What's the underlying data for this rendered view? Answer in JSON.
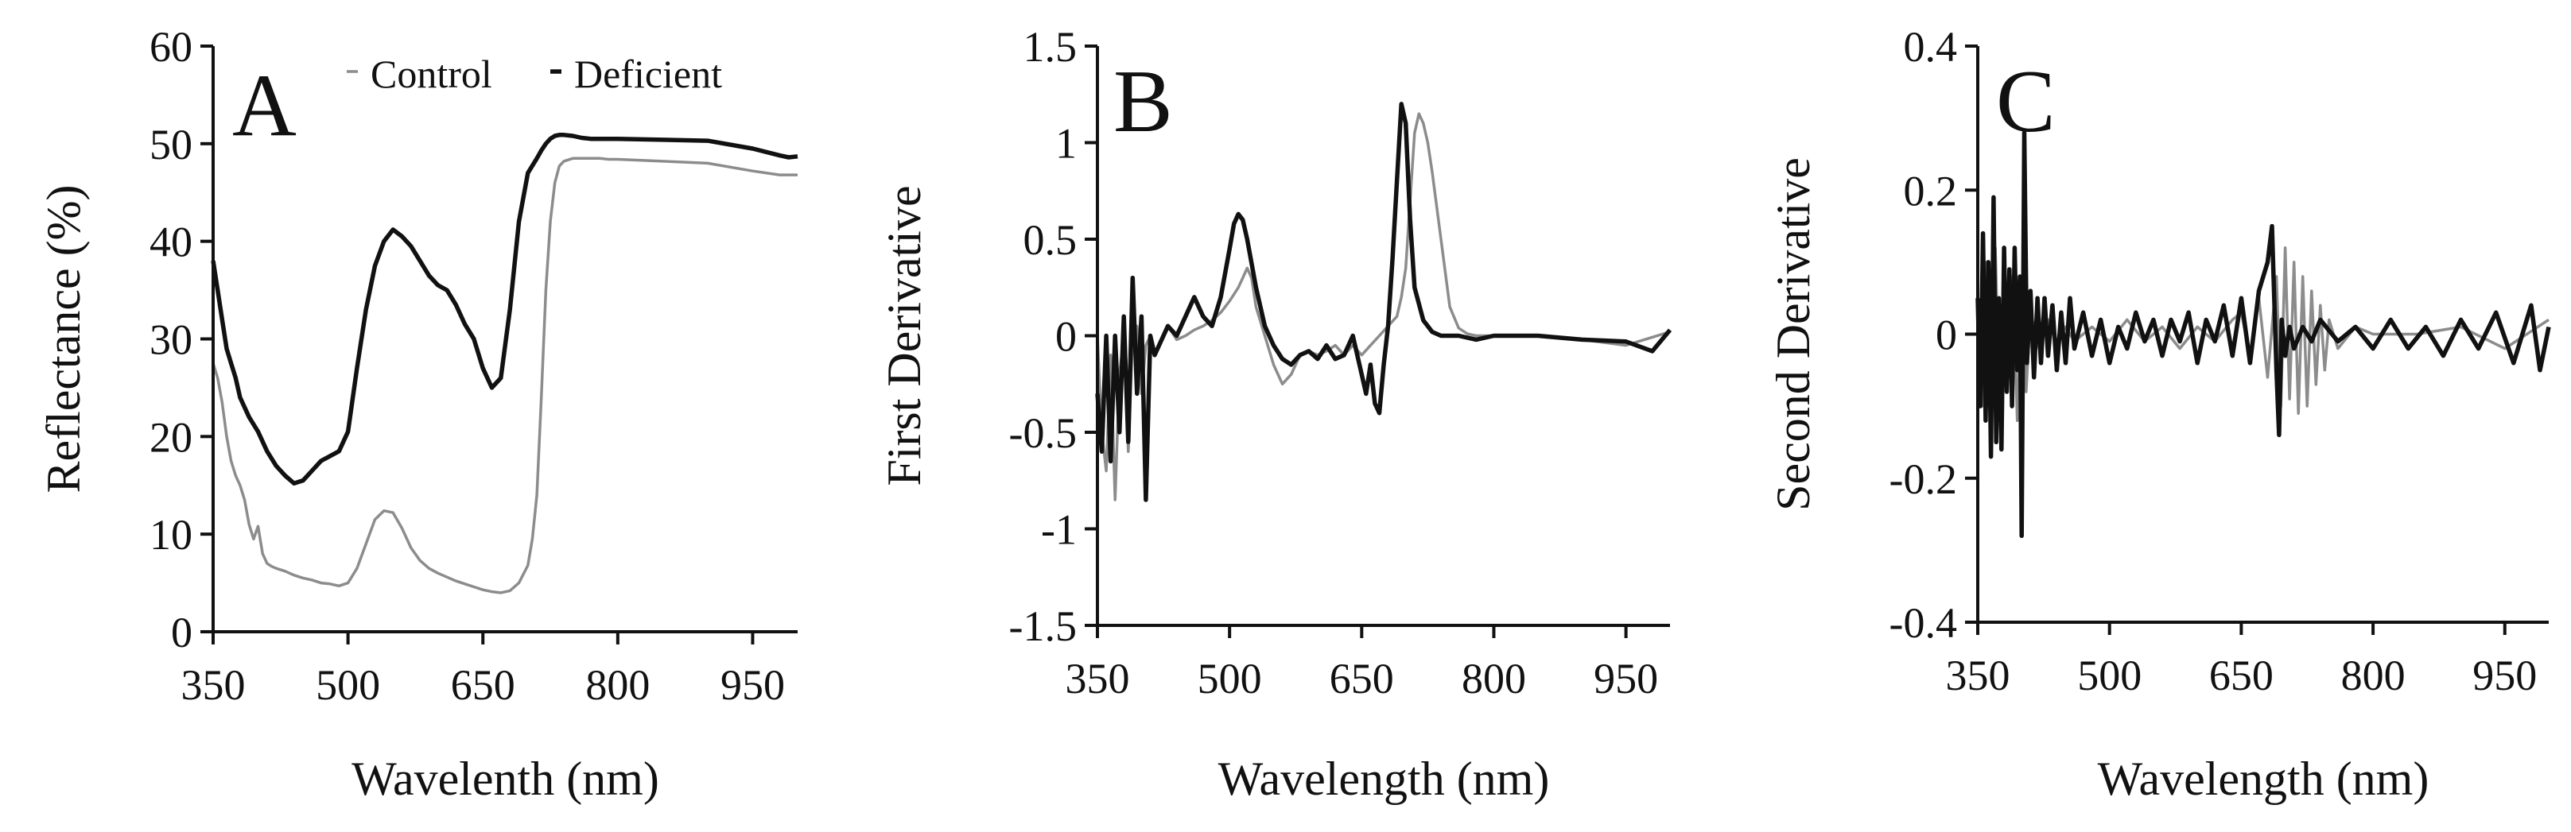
{
  "colors": {
    "control": "#8c8c8c",
    "deficient": "#111111",
    "axis": "#111111"
  },
  "chart_data": [
    {
      "type": "line",
      "panel_letter": "A",
      "title": "",
      "xlabel": "Wavelenth (nm)",
      "ylabel": "Reflectance (%)",
      "xlim": [
        350,
        1000
      ],
      "ylim": [
        0,
        60
      ],
      "xticks": [
        350,
        500,
        650,
        800,
        950
      ],
      "xtick_labels": [
        "350",
        "500",
        "650",
        "800",
        "950"
      ],
      "yticks": [
        0,
        10,
        20,
        30,
        40,
        50,
        60
      ],
      "ytick_labels": [
        "0",
        "10",
        "20",
        "30",
        "40",
        "50",
        "60"
      ],
      "legend": {
        "placement": "top-right",
        "labels": [
          "Control",
          "Deficient"
        ]
      },
      "grid": false,
      "series": [
        {
          "name": "Control",
          "color_key": "control",
          "x": [
            350,
            355,
            360,
            365,
            370,
            375,
            380,
            385,
            390,
            395,
            400,
            405,
            410,
            415,
            420,
            430,
            440,
            450,
            460,
            470,
            480,
            490,
            500,
            510,
            520,
            530,
            540,
            550,
            560,
            570,
            580,
            590,
            600,
            610,
            620,
            630,
            640,
            650,
            660,
            670,
            680,
            690,
            700,
            705,
            710,
            715,
            720,
            725,
            730,
            735,
            740,
            750,
            760,
            770,
            780,
            790,
            800,
            850,
            900,
            950,
            980,
            1000
          ],
          "y": [
            27.5,
            26,
            23.5,
            20,
            17.5,
            16,
            15,
            13.5,
            11,
            9.5,
            10.8,
            8,
            7,
            6.7,
            6.5,
            6.2,
            5.8,
            5.5,
            5.3,
            5,
            4.9,
            4.7,
            5,
            6.5,
            9,
            11.5,
            12.4,
            12.2,
            10.6,
            8.6,
            7.3,
            6.5,
            6,
            5.6,
            5.2,
            4.9,
            4.6,
            4.3,
            4.1,
            4,
            4.2,
            5,
            6.8,
            9.5,
            14,
            24,
            35,
            42,
            46,
            47.7,
            48.2,
            48.5,
            48.5,
            48.5,
            48.5,
            48.4,
            48.4,
            48.2,
            48,
            47.2,
            46.8,
            46.8
          ]
        },
        {
          "name": "Deficient",
          "color_key": "deficient",
          "x": [
            350,
            355,
            360,
            365,
            370,
            375,
            380,
            390,
            400,
            410,
            420,
            430,
            440,
            450,
            460,
            470,
            480,
            490,
            500,
            510,
            520,
            530,
            540,
            550,
            560,
            570,
            580,
            590,
            600,
            610,
            620,
            630,
            640,
            650,
            660,
            670,
            680,
            690,
            700,
            710,
            715,
            720,
            725,
            730,
            735,
            740,
            750,
            760,
            770,
            780,
            790,
            800,
            850,
            900,
            950,
            980,
            990,
            1000
          ],
          "y": [
            38,
            35,
            32,
            29,
            27.5,
            26,
            24,
            22,
            20.5,
            18.5,
            17,
            16,
            15.2,
            15.5,
            16.5,
            17.5,
            18,
            18.5,
            20.5,
            27,
            33,
            37.5,
            40,
            41.2,
            40.5,
            39.5,
            38,
            36.5,
            35.5,
            35,
            33.5,
            31.5,
            30,
            27,
            25,
            26,
            33,
            42,
            47,
            48.5,
            49.3,
            50,
            50.5,
            50.8,
            50.9,
            50.9,
            50.8,
            50.6,
            50.5,
            50.5,
            50.5,
            50.5,
            50.4,
            50.3,
            49.5,
            48.8,
            48.6,
            48.7
          ]
        }
      ]
    },
    {
      "type": "line",
      "panel_letter": "B",
      "title": "",
      "xlabel": "Wavelength (nm)",
      "ylabel": "First Derivative",
      "xlim": [
        350,
        1000
      ],
      "ylim": [
        -1.5,
        1.5
      ],
      "xticks": [
        350,
        500,
        650,
        800,
        950
      ],
      "xtick_labels": [
        "350",
        "500",
        "650",
        "800",
        "950"
      ],
      "yticks": [
        -1.5,
        -1,
        -0.5,
        0,
        0.5,
        1,
        1.5
      ],
      "ytick_labels": [
        "-1.5",
        "-1",
        "-0.5",
        "0",
        "0.5",
        "1",
        "1.5"
      ],
      "grid": false,
      "series": [
        {
          "name": "Control",
          "color_key": "control",
          "x": [
            350,
            355,
            360,
            365,
            370,
            375,
            380,
            385,
            390,
            395,
            400,
            405,
            410,
            415,
            420,
            430,
            440,
            450,
            460,
            470,
            480,
            490,
            500,
            510,
            515,
            520,
            525,
            530,
            540,
            550,
            560,
            570,
            580,
            590,
            600,
            610,
            620,
            630,
            640,
            650,
            660,
            670,
            680,
            690,
            695,
            700,
            705,
            710,
            715,
            720,
            725,
            730,
            740,
            750,
            760,
            770,
            780,
            800,
            850,
            900,
            950,
            1000
          ],
          "y": [
            0,
            -0.5,
            -0.7,
            -0.1,
            -0.85,
            -0.2,
            0,
            -0.6,
            0,
            0.05,
            -0.3,
            -0.05,
            0,
            -0.1,
            -0.05,
            0.05,
            -0.02,
            0,
            0.03,
            0.05,
            0.08,
            0.12,
            0.18,
            0.25,
            0.3,
            0.35,
            0.3,
            0.15,
            0,
            -0.15,
            -0.25,
            -0.2,
            -0.1,
            -0.08,
            -0.1,
            -0.08,
            -0.05,
            -0.1,
            -0.05,
            -0.1,
            -0.05,
            0,
            0.05,
            0.1,
            0.2,
            0.35,
            0.7,
            1.05,
            1.15,
            1.1,
            1.0,
            0.85,
            0.5,
            0.15,
            0.04,
            0.01,
            0,
            0,
            0,
            -0.02,
            -0.05,
            0.02
          ]
        },
        {
          "name": "Deficient",
          "color_key": "deficient",
          "x": [
            350,
            355,
            360,
            365,
            370,
            375,
            380,
            385,
            390,
            395,
            400,
            405,
            410,
            415,
            420,
            430,
            440,
            450,
            460,
            470,
            480,
            490,
            500,
            505,
            510,
            515,
            520,
            530,
            540,
            550,
            560,
            570,
            580,
            590,
            600,
            610,
            620,
            630,
            640,
            650,
            655,
            660,
            665,
            670,
            675,
            680,
            685,
            690,
            695,
            700,
            705,
            710,
            720,
            730,
            740,
            750,
            760,
            780,
            800,
            850,
            900,
            950,
            980,
            1000
          ],
          "y": [
            -0.3,
            -0.6,
            0,
            -0.65,
            0,
            -0.5,
            0.1,
            -0.55,
            0.3,
            -0.3,
            0.1,
            -0.85,
            0,
            -0.1,
            -0.05,
            0.05,
            0,
            0.1,
            0.2,
            0.1,
            0.05,
            0.2,
            0.45,
            0.58,
            0.63,
            0.6,
            0.5,
            0.25,
            0.05,
            -0.05,
            -0.12,
            -0.15,
            -0.1,
            -0.08,
            -0.12,
            -0.05,
            -0.12,
            -0.1,
            0,
            -0.2,
            -0.3,
            -0.15,
            -0.35,
            -0.4,
            -0.15,
            0.05,
            0.4,
            0.8,
            1.2,
            1.1,
            0.6,
            0.25,
            0.08,
            0.02,
            0,
            0,
            0,
            -0.02,
            0,
            0,
            -0.02,
            -0.03,
            -0.08,
            0.03
          ]
        }
      ]
    },
    {
      "type": "line",
      "panel_letter": "C",
      "title": "",
      "xlabel": "Wavelength (nm)",
      "ylabel": "Second Derivative",
      "xlim": [
        350,
        1000
      ],
      "ylim": [
        -0.4,
        0.4
      ],
      "xticks": [
        350,
        500,
        650,
        800,
        950
      ],
      "xtick_labels": [
        "350",
        "500",
        "650",
        "800",
        "950"
      ],
      "yticks": [
        -0.4,
        -0.2,
        0,
        0.2,
        0.4
      ],
      "ytick_labels": [
        "-0.4",
        "-0.2",
        "0",
        "0.2",
        "0.4"
      ],
      "grid": false,
      "series": [
        {
          "name": "Control",
          "color_key": "control",
          "x": [
            350,
            355,
            360,
            365,
            370,
            375,
            380,
            385,
            390,
            395,
            400,
            405,
            410,
            420,
            430,
            440,
            450,
            460,
            480,
            500,
            520,
            540,
            560,
            580,
            600,
            620,
            640,
            650,
            660,
            670,
            680,
            690,
            695,
            700,
            705,
            710,
            715,
            720,
            725,
            730,
            735,
            740,
            745,
            750,
            760,
            780,
            800,
            850,
            900,
            950,
            1000
          ],
          "y": [
            0.05,
            -0.1,
            0.1,
            -0.15,
            0.12,
            -0.1,
            0.05,
            -0.05,
            0.08,
            -0.12,
            0.05,
            -0.08,
            0.03,
            -0.02,
            0.02,
            -0.01,
            0.01,
            -0.01,
            0.01,
            -0.01,
            0.02,
            -0.01,
            0.01,
            -0.02,
            0.01,
            -0.01,
            0.02,
            0.03,
            -0.03,
            0.05,
            -0.06,
            0.08,
            -0.1,
            0.12,
            -0.09,
            0.1,
            -0.11,
            0.08,
            -0.1,
            0.06,
            -0.07,
            0.04,
            -0.05,
            0.02,
            -0.02,
            0.01,
            0,
            0,
            0.01,
            -0.02,
            0.02
          ]
        },
        {
          "name": "Deficient",
          "color_key": "deficient",
          "x": [
            350,
            353,
            356,
            359,
            362,
            365,
            368,
            371,
            374,
            377,
            380,
            383,
            386,
            389,
            392,
            395,
            398,
            400,
            403,
            406,
            410,
            414,
            418,
            422,
            426,
            430,
            435,
            440,
            445,
            450,
            455,
            460,
            470,
            480,
            490,
            500,
            510,
            520,
            530,
            540,
            550,
            560,
            570,
            580,
            590,
            600,
            610,
            620,
            630,
            640,
            650,
            660,
            670,
            680,
            685,
            690,
            693,
            696,
            700,
            705,
            710,
            720,
            730,
            740,
            760,
            780,
            800,
            820,
            840,
            860,
            880,
            900,
            920,
            940,
            960,
            980,
            990,
            1000
          ],
          "y": [
            0.05,
            -0.1,
            0.14,
            -0.12,
            0.1,
            -0.17,
            0.19,
            -0.15,
            0.05,
            -0.16,
            0.12,
            -0.08,
            0.09,
            -0.1,
            0.12,
            -0.05,
            0.08,
            -0.28,
            0.28,
            -0.04,
            0.06,
            -0.06,
            0.05,
            -0.04,
            0.05,
            -0.03,
            0.04,
            -0.05,
            0.03,
            -0.04,
            0.05,
            -0.02,
            0.03,
            -0.03,
            0.02,
            -0.04,
            0.01,
            -0.02,
            0.03,
            -0.01,
            0.02,
            -0.03,
            0.02,
            -0.01,
            0.03,
            -0.04,
            0.02,
            -0.01,
            0.04,
            -0.03,
            0.05,
            -0.04,
            0.06,
            0.1,
            0.15,
            -0.05,
            -0.14,
            0.02,
            -0.03,
            0.01,
            -0.02,
            0.01,
            -0.01,
            0.02,
            -0.01,
            0.01,
            -0.02,
            0.02,
            -0.02,
            0.01,
            -0.03,
            0.02,
            -0.02,
            0.03,
            -0.04,
            0.04,
            -0.05,
            0.01
          ]
        }
      ]
    }
  ]
}
